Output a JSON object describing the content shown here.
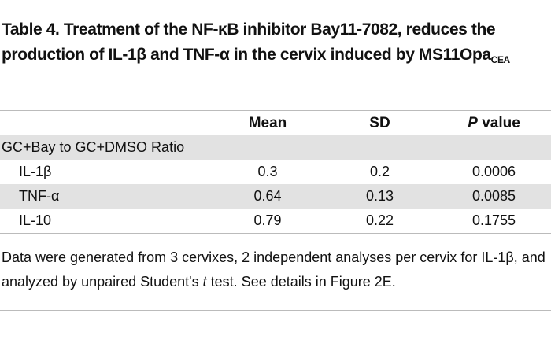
{
  "title": {
    "text": "Table 4. Treatment of the NF-κB inhibitor Bay11-7082, reduces the production of IL-1β and TNF-α in the cervix induced by MS11Opa",
    "subscript": "CEA"
  },
  "table": {
    "header": {
      "mean": "Mean",
      "sd": "SD",
      "p_italic": "P",
      "p_rest": "value"
    },
    "group": "GC+Bay to GC+DMSO Ratio",
    "rows": [
      [
        "IL-1β",
        "0.3",
        "0.2",
        "0.0006"
      ],
      [
        "TNF-α",
        "0.64",
        "0.13",
        "0.0085"
      ],
      [
        "IL-10",
        "0.79",
        "0.22",
        "0.1755"
      ]
    ]
  },
  "footnote": {
    "before": "Data were generated from 3 cervixes, 2 independent analyses per cervix for IL-1β, and analyzed by unpaired Student's",
    "italic": "t",
    "after": "test. See details in Figure 2E."
  }
}
